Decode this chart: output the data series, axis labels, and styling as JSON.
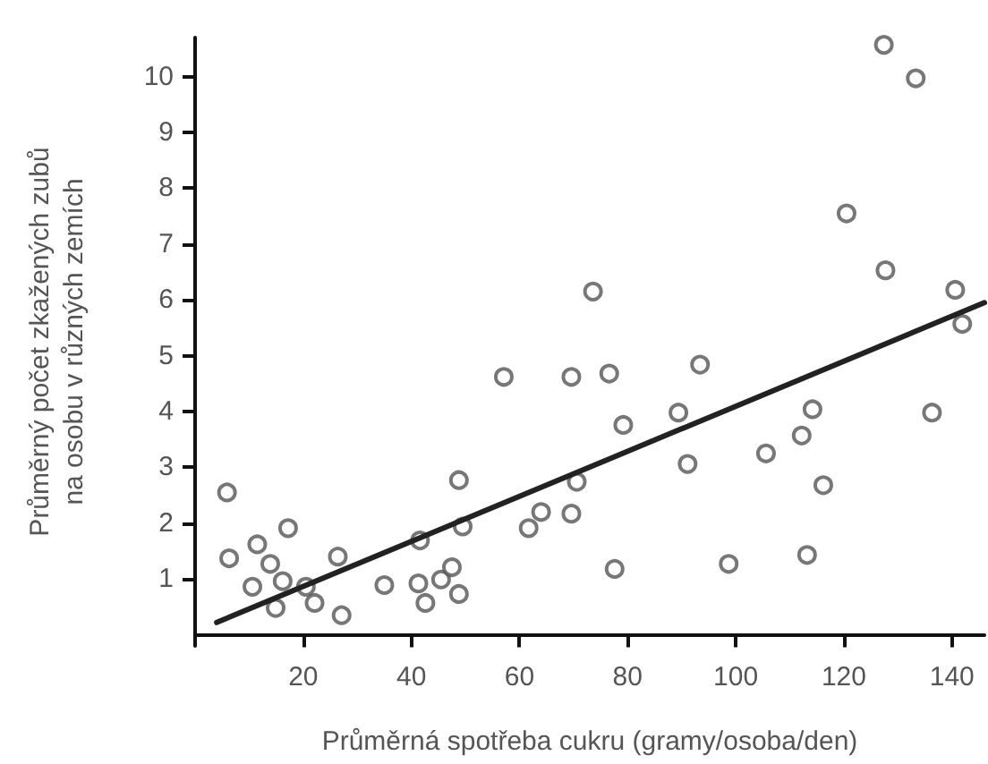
{
  "chart_data": {
    "type": "scatter",
    "xlabel": "Průměrná spotřeba cukru (gramy/osoba/den)",
    "ylabel": "Průměrný počet zkažených zubů\nna osobu v různých zemích",
    "xlim": [
      0,
      146
    ],
    "xticks": [
      20,
      40,
      60,
      80,
      100,
      120,
      140
    ],
    "ylim": [
      -0.2,
      10.7
    ],
    "yticks": [
      1,
      2,
      3,
      4,
      5,
      6,
      7,
      8,
      9,
      10
    ],
    "grid": false,
    "marker": "circle",
    "series": [
      {
        "color": "#555555",
        "x": [
          5.9,
          6.3,
          11.5,
          10.6,
          13.9,
          17.2,
          16.2,
          14.9,
          20.5,
          22.1,
          26.4,
          27.1,
          35.0,
          41.3,
          41.6,
          42.6,
          45.5,
          47.5,
          48.8,
          48.8,
          49.5,
          57.1,
          61.7,
          64.0,
          69.6,
          69.6,
          70.6,
          73.6,
          76.6,
          77.6,
          79.2,
          89.4,
          91.1,
          93.4,
          98.7,
          105.6,
          112.2,
          113.2,
          114.2,
          116.2,
          120.5,
          127.4,
          127.7,
          133.3,
          136.3,
          140.6,
          141.9
        ],
        "values": [
          2.55,
          1.37,
          1.62,
          0.86,
          1.27,
          1.91,
          0.96,
          0.48,
          0.86,
          0.57,
          1.4,
          0.35,
          0.89,
          0.92,
          1.69,
          0.57,
          0.99,
          1.21,
          0.73,
          2.77,
          1.94,
          4.62,
          1.91,
          2.2,
          2.17,
          4.62,
          2.74,
          6.15,
          4.68,
          1.18,
          3.76,
          3.98,
          3.06,
          4.84,
          1.27,
          3.25,
          3.57,
          1.43,
          4.04,
          2.68,
          7.55,
          10.57,
          6.53,
          9.97,
          3.98,
          6.18,
          5.57
        ]
      },
      {
        "type": "line",
        "color": "#222222",
        "marker": "none",
        "line_style": "solid",
        "x": [
          4,
          146
        ],
        "values": [
          0.22,
          5.95
        ]
      }
    ]
  }
}
